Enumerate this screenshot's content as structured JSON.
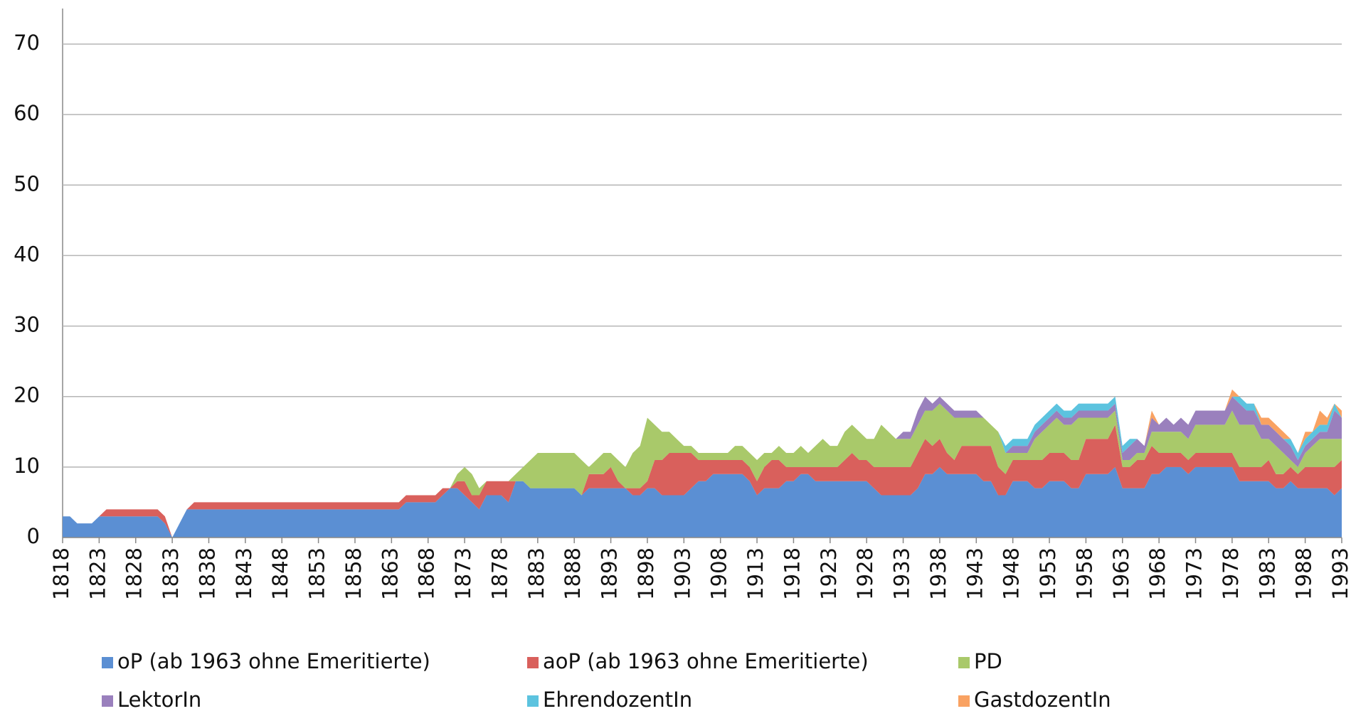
{
  "chart_data": {
    "type": "stacked_area",
    "x": [
      1818,
      1819,
      1820,
      1821,
      1822,
      1823,
      1824,
      1825,
      1826,
      1827,
      1828,
      1829,
      1830,
      1831,
      1832,
      1833,
      1834,
      1835,
      1836,
      1837,
      1838,
      1839,
      1840,
      1841,
      1842,
      1843,
      1844,
      1845,
      1846,
      1847,
      1848,
      1849,
      1850,
      1851,
      1852,
      1853,
      1854,
      1855,
      1856,
      1857,
      1858,
      1859,
      1860,
      1861,
      1862,
      1863,
      1864,
      1865,
      1866,
      1867,
      1868,
      1869,
      1870,
      1871,
      1872,
      1873,
      1874,
      1875,
      1876,
      1877,
      1878,
      1879,
      1880,
      1881,
      1882,
      1883,
      1884,
      1885,
      1886,
      1887,
      1888,
      1889,
      1890,
      1891,
      1892,
      1893,
      1894,
      1895,
      1896,
      1897,
      1898,
      1899,
      1900,
      1901,
      1902,
      1903,
      1904,
      1905,
      1906,
      1907,
      1908,
      1909,
      1910,
      1911,
      1912,
      1913,
      1914,
      1915,
      1916,
      1917,
      1918,
      1919,
      1920,
      1921,
      1922,
      1923,
      1924,
      1925,
      1926,
      1927,
      1928,
      1929,
      1930,
      1931,
      1932,
      1933,
      1934,
      1935,
      1936,
      1937,
      1938,
      1939,
      1940,
      1941,
      1942,
      1943,
      1944,
      1945,
      1946,
      1947,
      1948,
      1949,
      1950,
      1951,
      1952,
      1953,
      1954,
      1955,
      1956,
      1957,
      1958,
      1959,
      1960,
      1961,
      1962,
      1963,
      1964,
      1965,
      1966,
      1967,
      1968,
      1969,
      1970,
      1971,
      1972,
      1973,
      1974,
      1975,
      1976,
      1977,
      1978,
      1979,
      1980,
      1981,
      1982,
      1983,
      1984,
      1985,
      1986,
      1987,
      1988,
      1989,
      1990,
      1991,
      1992,
      1993
    ],
    "xlim": [
      1818,
      1993
    ],
    "xticks": [
      1818,
      1823,
      1828,
      1833,
      1838,
      1843,
      1848,
      1853,
      1858,
      1863,
      1868,
      1873,
      1878,
      1883,
      1888,
      1893,
      1898,
      1903,
      1908,
      1913,
      1918,
      1923,
      1928,
      1933,
      1938,
      1943,
      1948,
      1953,
      1958,
      1963,
      1968,
      1973,
      1978,
      1983,
      1988,
      1993
    ],
    "ylim": [
      0,
      70
    ],
    "yticks": [
      0,
      10,
      20,
      30,
      40,
      50,
      60,
      70
    ],
    "grid": true,
    "legend": "bottom",
    "series": [
      {
        "name": "oP (ab 1963 ohne Emeritierte)",
        "color": "#5b8fd3",
        "values": [
          3,
          3,
          2,
          2,
          2,
          3,
          3,
          3,
          3,
          3,
          3,
          3,
          3,
          3,
          2,
          0,
          2,
          4,
          4,
          4,
          4,
          4,
          4,
          4,
          4,
          4,
          4,
          4,
          4,
          4,
          4,
          4,
          4,
          4,
          4,
          4,
          4,
          4,
          4,
          4,
          4,
          4,
          4,
          4,
          4,
          4,
          4,
          5,
          5,
          5,
          5,
          5,
          6,
          7,
          7,
          6,
          5,
          4,
          6,
          6,
          6,
          5,
          8,
          8,
          7,
          7,
          7,
          7,
          7,
          7,
          7,
          6,
          7,
          7,
          7,
          7,
          7,
          7,
          6,
          6,
          7,
          7,
          6,
          6,
          6,
          6,
          7,
          8,
          8,
          9,
          9,
          9,
          9,
          9,
          8,
          6,
          7,
          7,
          7,
          8,
          8,
          9,
          9,
          8,
          8,
          8,
          8,
          8,
          8,
          8,
          8,
          7,
          6,
          6,
          6,
          6,
          6,
          7,
          9,
          9,
          10,
          9,
          9,
          9,
          9,
          9,
          8,
          8,
          6,
          6,
          8,
          8,
          8,
          7,
          7,
          8,
          8,
          8,
          7,
          7,
          9,
          9,
          9,
          9,
          10,
          7,
          7,
          7,
          7,
          9,
          9,
          10,
          10,
          10,
          9,
          10,
          10,
          10,
          10,
          10,
          10,
          8,
          8,
          8,
          8,
          8,
          7,
          7,
          8,
          7,
          7,
          7,
          7,
          7,
          6,
          7
        ]
      },
      {
        "name": "aoP (ab 1963 ohne Emeritierte)",
        "color": "#d9605c",
        "values": [
          0,
          0,
          0,
          0,
          0,
          0,
          1,
          1,
          1,
          1,
          1,
          1,
          1,
          1,
          1,
          0,
          0,
          0,
          1,
          1,
          1,
          1,
          1,
          1,
          1,
          1,
          1,
          1,
          1,
          1,
          1,
          1,
          1,
          1,
          1,
          1,
          1,
          1,
          1,
          1,
          1,
          1,
          1,
          1,
          1,
          1,
          1,
          1,
          1,
          1,
          1,
          1,
          1,
          0,
          1,
          2,
          1,
          2,
          2,
          2,
          2,
          3,
          0,
          0,
          0,
          0,
          0,
          0,
          0,
          0,
          0,
          0,
          2,
          2,
          2,
          3,
          1,
          0,
          1,
          1,
          1,
          4,
          5,
          6,
          6,
          6,
          5,
          3,
          3,
          2,
          2,
          2,
          2,
          2,
          2,
          2,
          3,
          4,
          4,
          2,
          2,
          1,
          1,
          2,
          2,
          2,
          2,
          3,
          4,
          3,
          3,
          3,
          4,
          4,
          4,
          4,
          4,
          5,
          5,
          4,
          4,
          3,
          2,
          4,
          4,
          4,
          5,
          5,
          4,
          3,
          3,
          3,
          3,
          4,
          4,
          4,
          4,
          4,
          4,
          4,
          5,
          5,
          5,
          5,
          6,
          3,
          3,
          4,
          4,
          4,
          3,
          2,
          2,
          2,
          2,
          2,
          2,
          2,
          2,
          2,
          2,
          2,
          2,
          2,
          2,
          3,
          2,
          2,
          2,
          2,
          3,
          3,
          3,
          3,
          4,
          4
        ]
      },
      {
        "name": "PD",
        "color": "#a9c96a",
        "values": [
          0,
          0,
          0,
          0,
          0,
          0,
          0,
          0,
          0,
          0,
          0,
          0,
          0,
          0,
          0,
          0,
          0,
          0,
          0,
          0,
          0,
          0,
          0,
          0,
          0,
          0,
          0,
          0,
          0,
          0,
          0,
          0,
          0,
          0,
          0,
          0,
          0,
          0,
          0,
          0,
          0,
          0,
          0,
          0,
          0,
          0,
          0,
          0,
          0,
          0,
          0,
          0,
          0,
          0,
          1,
          2,
          3,
          1,
          0,
          0,
          0,
          0,
          1,
          2,
          4,
          5,
          5,
          5,
          5,
          5,
          5,
          5,
          1,
          2,
          3,
          2,
          3,
          3,
          5,
          6,
          9,
          5,
          4,
          3,
          2,
          1,
          1,
          1,
          1,
          1,
          1,
          1,
          2,
          2,
          2,
          3,
          2,
          1,
          2,
          2,
          2,
          3,
          2,
          3,
          4,
          3,
          3,
          4,
          4,
          4,
          3,
          4,
          6,
          5,
          4,
          4,
          4,
          4,
          4,
          5,
          5,
          6,
          6,
          4,
          4,
          4,
          4,
          3,
          5,
          3,
          1,
          1,
          1,
          3,
          4,
          4,
          5,
          4,
          5,
          6,
          3,
          3,
          3,
          3,
          2,
          1,
          1,
          1,
          1,
          2,
          3,
          3,
          3,
          3,
          3,
          4,
          4,
          4,
          4,
          4,
          6,
          6,
          6,
          6,
          4,
          3,
          4,
          3,
          1,
          1,
          2,
          3,
          4,
          4,
          4,
          3
        ]
      },
      {
        "name": "LektorIn",
        "color": "#9a80bd",
        "values": [
          0,
          0,
          0,
          0,
          0,
          0,
          0,
          0,
          0,
          0,
          0,
          0,
          0,
          0,
          0,
          0,
          0,
          0,
          0,
          0,
          0,
          0,
          0,
          0,
          0,
          0,
          0,
          0,
          0,
          0,
          0,
          0,
          0,
          0,
          0,
          0,
          0,
          0,
          0,
          0,
          0,
          0,
          0,
          0,
          0,
          0,
          0,
          0,
          0,
          0,
          0,
          0,
          0,
          0,
          0,
          0,
          0,
          0,
          0,
          0,
          0,
          0,
          0,
          0,
          0,
          0,
          0,
          0,
          0,
          0,
          0,
          0,
          0,
          0,
          0,
          0,
          0,
          0,
          0,
          0,
          0,
          0,
          0,
          0,
          0,
          0,
          0,
          0,
          0,
          0,
          0,
          0,
          0,
          0,
          0,
          0,
          0,
          0,
          0,
          0,
          0,
          0,
          0,
          0,
          0,
          0,
          0,
          0,
          0,
          0,
          0,
          0,
          0,
          0,
          0,
          1,
          1,
          2,
          2,
          1,
          1,
          1,
          1,
          1,
          1,
          1,
          0,
          0,
          0,
          0,
          1,
          1,
          1,
          1,
          1,
          1,
          1,
          1,
          1,
          1,
          1,
          1,
          1,
          1,
          1,
          1,
          2,
          2,
          1,
          2,
          1,
          2,
          1,
          2,
          2,
          2,
          2,
          2,
          2,
          2,
          2,
          3,
          2,
          2,
          2,
          2,
          2,
          2,
          2,
          1,
          1,
          1,
          1,
          1,
          4,
          3
        ]
      },
      {
        "name": "EhrendozentIn",
        "color": "#5cc3df",
        "values": [
          0,
          0,
          0,
          0,
          0,
          0,
          0,
          0,
          0,
          0,
          0,
          0,
          0,
          0,
          0,
          0,
          0,
          0,
          0,
          0,
          0,
          0,
          0,
          0,
          0,
          0,
          0,
          0,
          0,
          0,
          0,
          0,
          0,
          0,
          0,
          0,
          0,
          0,
          0,
          0,
          0,
          0,
          0,
          0,
          0,
          0,
          0,
          0,
          0,
          0,
          0,
          0,
          0,
          0,
          0,
          0,
          0,
          0,
          0,
          0,
          0,
          0,
          0,
          0,
          0,
          0,
          0,
          0,
          0,
          0,
          0,
          0,
          0,
          0,
          0,
          0,
          0,
          0,
          0,
          0,
          0,
          0,
          0,
          0,
          0,
          0,
          0,
          0,
          0,
          0,
          0,
          0,
          0,
          0,
          0,
          0,
          0,
          0,
          0,
          0,
          0,
          0,
          0,
          0,
          0,
          0,
          0,
          0,
          0,
          0,
          0,
          0,
          0,
          0,
          0,
          0,
          0,
          0,
          0,
          0,
          0,
          0,
          0,
          0,
          0,
          0,
          0,
          0,
          0,
          1,
          1,
          1,
          1,
          1,
          1,
          1,
          1,
          1,
          1,
          1,
          1,
          1,
          1,
          1,
          1,
          1,
          1,
          0,
          0,
          0,
          0,
          0,
          0,
          0,
          0,
          0,
          0,
          0,
          0,
          0,
          0,
          1,
          1,
          1,
          0,
          0,
          0,
          0,
          1,
          1,
          1,
          1,
          1,
          1,
          1,
          0
        ]
      },
      {
        "name": "GastdozentIn",
        "color": "#f9a262",
        "values": [
          0,
          0,
          0,
          0,
          0,
          0,
          0,
          0,
          0,
          0,
          0,
          0,
          0,
          0,
          0,
          0,
          0,
          0,
          0,
          0,
          0,
          0,
          0,
          0,
          0,
          0,
          0,
          0,
          0,
          0,
          0,
          0,
          0,
          0,
          0,
          0,
          0,
          0,
          0,
          0,
          0,
          0,
          0,
          0,
          0,
          0,
          0,
          0,
          0,
          0,
          0,
          0,
          0,
          0,
          0,
          0,
          0,
          0,
          0,
          0,
          0,
          0,
          0,
          0,
          0,
          0,
          0,
          0,
          0,
          0,
          0,
          0,
          0,
          0,
          0,
          0,
          0,
          0,
          0,
          0,
          0,
          0,
          0,
          0,
          0,
          0,
          0,
          0,
          0,
          0,
          0,
          0,
          0,
          0,
          0,
          0,
          0,
          0,
          0,
          0,
          0,
          0,
          0,
          0,
          0,
          0,
          0,
          0,
          0,
          0,
          0,
          0,
          0,
          0,
          0,
          0,
          0,
          0,
          0,
          0,
          0,
          0,
          0,
          0,
          0,
          0,
          0,
          0,
          0,
          0,
          0,
          0,
          0,
          0,
          0,
          0,
          0,
          0,
          0,
          0,
          0,
          0,
          0,
          0,
          0,
          0,
          0,
          0,
          0,
          1,
          0,
          0,
          0,
          0,
          0,
          0,
          0,
          0,
          0,
          0,
          1,
          0,
          0,
          0,
          1,
          1,
          1,
          1,
          0,
          0,
          1,
          0,
          2,
          1,
          0,
          1
        ]
      }
    ]
  }
}
